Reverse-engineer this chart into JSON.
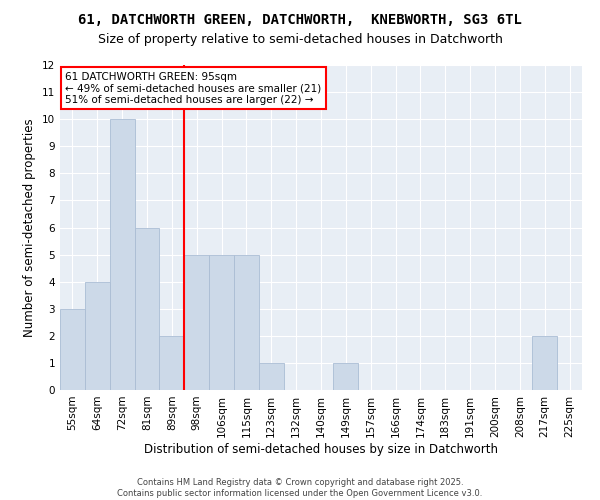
{
  "title": "61, DATCHWORTH GREEN, DATCHWORTH,  KNEBWORTH, SG3 6TL",
  "subtitle": "Size of property relative to semi-detached houses in Datchworth",
  "xlabel": "Distribution of semi-detached houses by size in Datchworth",
  "ylabel": "Number of semi-detached properties",
  "categories": [
    "55sqm",
    "64sqm",
    "72sqm",
    "81sqm",
    "89sqm",
    "98sqm",
    "106sqm",
    "115sqm",
    "123sqm",
    "132sqm",
    "140sqm",
    "149sqm",
    "157sqm",
    "166sqm",
    "174sqm",
    "183sqm",
    "191sqm",
    "200sqm",
    "208sqm",
    "217sqm",
    "225sqm"
  ],
  "values": [
    3,
    4,
    10,
    6,
    2,
    5,
    5,
    5,
    1,
    0,
    0,
    1,
    0,
    0,
    0,
    0,
    0,
    0,
    0,
    2,
    0
  ],
  "bar_color": "#ccd9e8",
  "bar_edgecolor": "#aabdd4",
  "vline_x": 4.5,
  "vline_color": "red",
  "annotation_text": "61 DATCHWORTH GREEN: 95sqm\n← 49% of semi-detached houses are smaller (21)\n51% of semi-detached houses are larger (22) →",
  "annotation_box_facecolor": "white",
  "annotation_box_edgecolor": "red",
  "ylim": [
    0,
    12
  ],
  "yticks": [
    0,
    1,
    2,
    3,
    4,
    5,
    6,
    7,
    8,
    9,
    10,
    11,
    12
  ],
  "background_color": "#e8eef5",
  "footer_text": "Contains HM Land Registry data © Crown copyright and database right 2025.\nContains public sector information licensed under the Open Government Licence v3.0.",
  "title_fontsize": 10,
  "subtitle_fontsize": 9,
  "xlabel_fontsize": 8.5,
  "ylabel_fontsize": 8.5,
  "annotation_fontsize": 7.5,
  "tick_fontsize": 7.5,
  "footer_fontsize": 6.0
}
